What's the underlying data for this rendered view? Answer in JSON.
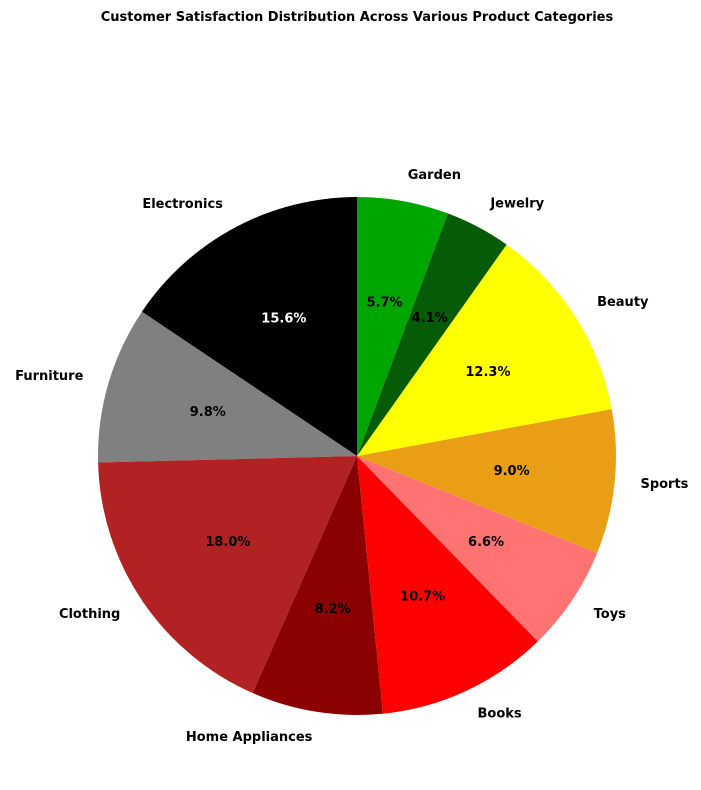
{
  "chart_data": {
    "type": "pie",
    "title": "Customer Satisfaction Distribution Across Various Product Categories",
    "start_angle_deg": 90,
    "direction": "counterclockwise",
    "slices": [
      {
        "label": "Electronics",
        "value": 15.6,
        "pct_text": "15.6%",
        "color": "#000000",
        "pct_color": "#ffffff"
      },
      {
        "label": "Furniture",
        "value": 9.8,
        "pct_text": "9.8%",
        "color": "#808080",
        "pct_color": "#000000"
      },
      {
        "label": "Clothing",
        "value": 18.0,
        "pct_text": "18.0%",
        "color": "#b22222",
        "pct_color": "#000000"
      },
      {
        "label": "Home Appliances",
        "value": 8.2,
        "pct_text": "8.2%",
        "color": "#8b0000",
        "pct_color": "#000000"
      },
      {
        "label": "Books",
        "value": 10.7,
        "pct_text": "10.7%",
        "color": "#ff0000",
        "pct_color": "#000000"
      },
      {
        "label": "Toys",
        "value": 6.6,
        "pct_text": "6.6%",
        "color": "#ff7373",
        "pct_color": "#000000"
      },
      {
        "label": "Sports",
        "value": 9.0,
        "pct_text": "9.0%",
        "color": "#e99e16",
        "pct_color": "#000000"
      },
      {
        "label": "Beauty",
        "value": 12.3,
        "pct_text": "12.3%",
        "color": "#ffff00",
        "pct_color": "#000000"
      },
      {
        "label": "Jewelry",
        "value": 4.1,
        "pct_text": "4.1%",
        "color": "#065c06",
        "pct_color": "#000000"
      },
      {
        "label": "Garden",
        "value": 5.7,
        "pct_text": "5.7%",
        "color": "#00a600",
        "pct_color": "#000000"
      }
    ]
  }
}
